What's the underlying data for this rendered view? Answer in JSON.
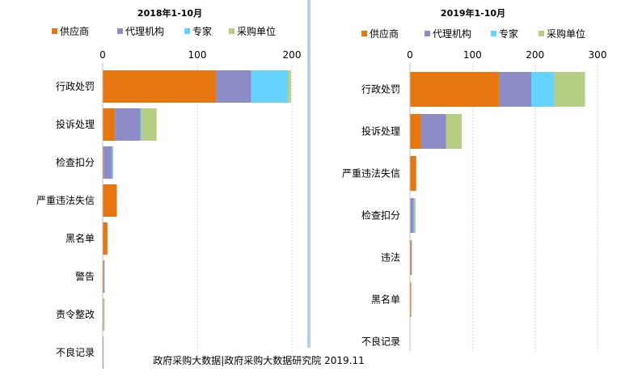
{
  "footer": "政府采购大数据|政府采购大数据研究院 2019.11",
  "colors": {
    "supplier": "#E6760F",
    "agency": "#8E8CC6",
    "expert": "#66D2FF",
    "purchaser": "#B5CE84",
    "divider": "#B8CEE6",
    "grid": "#D9D9D9"
  },
  "chart_data": [
    {
      "type": "bar",
      "orientation": "horizontal",
      "stacked": true,
      "title": "2018年1-10月",
      "legend_position": "top",
      "xlim": [
        0,
        200
      ],
      "xticks": [
        0,
        100,
        200
      ],
      "grid": true,
      "categories": [
        "行政处罚",
        "投诉处理",
        "检查扣分",
        "严重违法失信",
        "黑名单",
        "警告",
        "责令整改",
        "不良记录"
      ],
      "series": [
        {
          "name": "供应商",
          "values": [
            120,
            13,
            1,
            15,
            5,
            1,
            0,
            0
          ]
        },
        {
          "name": "代理机构",
          "values": [
            37,
            27,
            9,
            0,
            0,
            1,
            1,
            1
          ]
        },
        {
          "name": "专家",
          "values": [
            39,
            1,
            1,
            0,
            0,
            0,
            0,
            0
          ]
        },
        {
          "name": "采购单位",
          "values": [
            3,
            16,
            0,
            0,
            0,
            0,
            1,
            0
          ]
        }
      ]
    },
    {
      "type": "bar",
      "orientation": "horizontal",
      "stacked": true,
      "title": "2019年1-10月",
      "legend_position": "top",
      "xlim": [
        0,
        300
      ],
      "xticks": [
        0,
        100,
        200,
        300
      ],
      "grid": true,
      "categories": [
        "行政处罚",
        "投诉处理",
        "严重违法失信",
        "检查扣分",
        "违法",
        "黑名单",
        "不良记录"
      ],
      "series": [
        {
          "name": "供应商",
          "values": [
            143,
            18,
            10,
            1,
            2,
            2,
            0
          ]
        },
        {
          "name": "代理机构",
          "values": [
            51,
            40,
            0,
            5,
            1,
            0,
            0
          ]
        },
        {
          "name": "专家",
          "values": [
            37,
            0,
            0,
            1,
            0,
            0,
            0
          ]
        },
        {
          "name": "采购单位",
          "values": [
            49,
            25,
            0,
            2,
            0,
            0,
            0
          ]
        }
      ]
    }
  ]
}
